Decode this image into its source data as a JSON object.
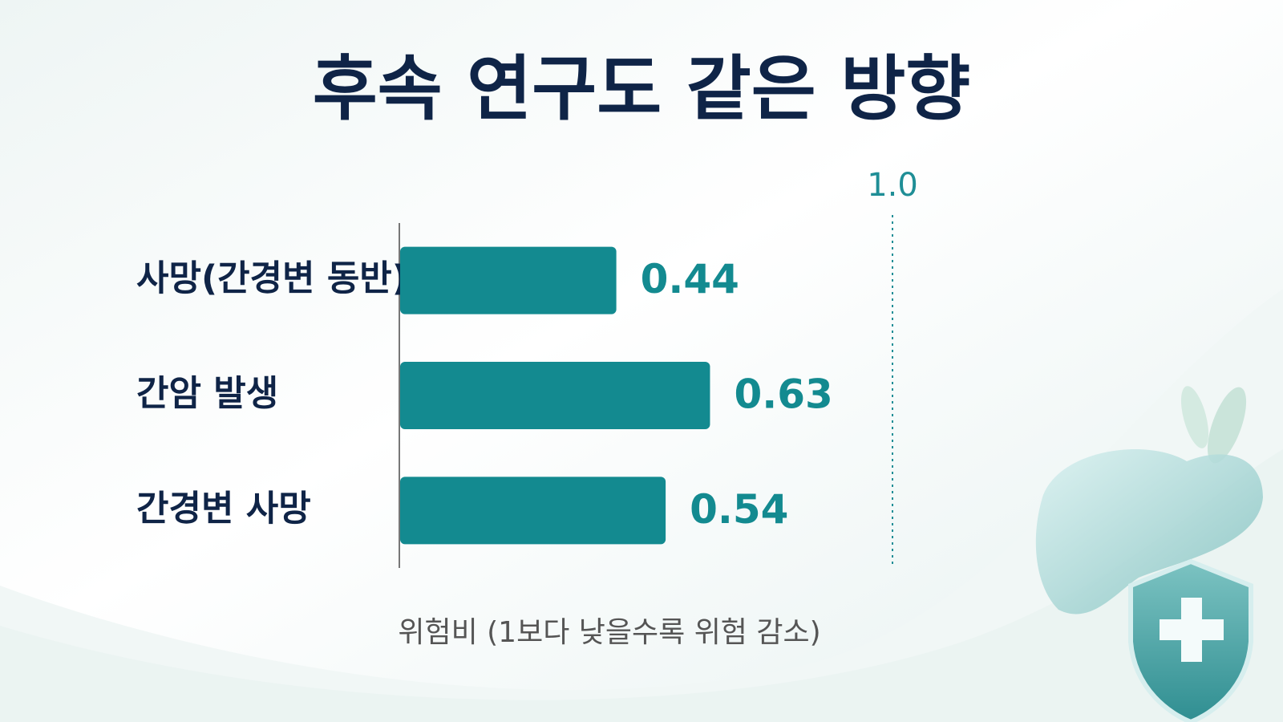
{
  "chart_data": {
    "type": "bar",
    "orientation": "horizontal",
    "title": "후속 연구도 같은 방향",
    "categories": [
      "사망(간경변 동반)",
      "간암 발생",
      "간경변 사망"
    ],
    "values": [
      0.44,
      0.63,
      0.54
    ],
    "color": "#138a90",
    "xlim": [
      0,
      1
    ],
    "xticks": [
      {
        "value": 1,
        "label": "1.0"
      }
    ],
    "xlabel": "위험비 (1보다 낮을수록 위험 감소)"
  }
}
